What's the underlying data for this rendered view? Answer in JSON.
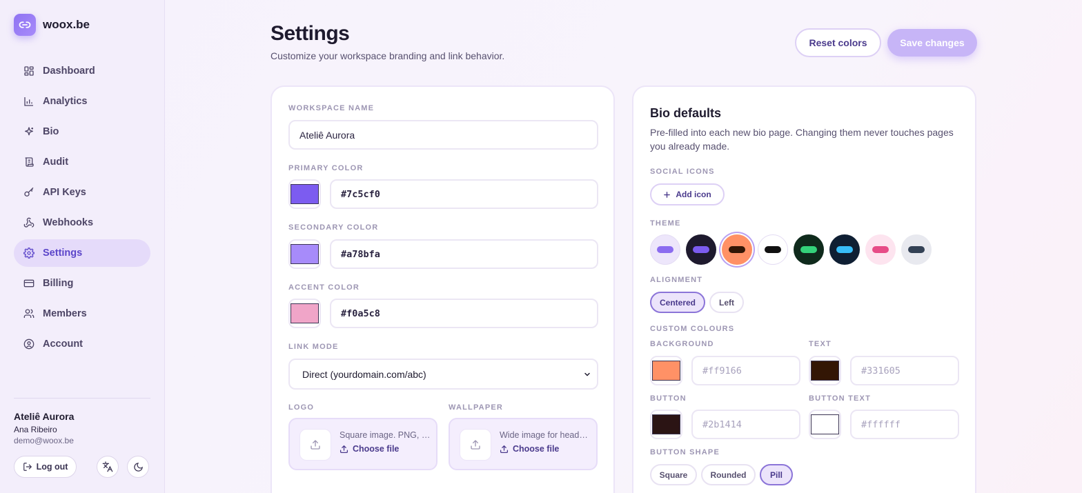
{
  "brand": {
    "name": "woox.be"
  },
  "nav": [
    {
      "label": "Dashboard",
      "icon": "dashboard-icon"
    },
    {
      "label": "Analytics",
      "icon": "analytics-icon"
    },
    {
      "label": "Bio",
      "icon": "sparkle-icon"
    },
    {
      "label": "Audit",
      "icon": "scroll-icon"
    },
    {
      "label": "API Keys",
      "icon": "key-icon"
    },
    {
      "label": "Webhooks",
      "icon": "webhook-icon"
    },
    {
      "label": "Settings",
      "icon": "gear-icon",
      "active": true
    },
    {
      "label": "Billing",
      "icon": "credit-card-icon"
    },
    {
      "label": "Members",
      "icon": "users-icon"
    },
    {
      "label": "Account",
      "icon": "user-circle-icon"
    }
  ],
  "user": {
    "workspace": "Ateliê Aurora",
    "name": "Ana Ribeiro",
    "email": "demo@woox.be",
    "logout_label": "Log out"
  },
  "header": {
    "title": "Settings",
    "subtitle": "Customize your workspace branding and link behavior.",
    "reset_label": "Reset colors",
    "save_label": "Save changes"
  },
  "workspace": {
    "name_label": "WORKSPACE NAME",
    "name_value": "Ateliê Aurora",
    "primary_label": "PRIMARY COLOR",
    "primary_value": "#7c5cf0",
    "secondary_label": "SECONDARY COLOR",
    "secondary_value": "#a78bfa",
    "accent_label": "ACCENT COLOR",
    "accent_value": "#f0a5c8",
    "link_mode_label": "LINK MODE",
    "link_mode_value": "Direct (yourdomain.com/abc)",
    "logo_label": "LOGO",
    "logo_hint": "Square image. PNG, JPG or SVG.",
    "wallpaper_label": "WALLPAPER",
    "wallpaper_hint": "Wide image for header background.",
    "choose_file_label": "Choose file"
  },
  "bio": {
    "title": "Bio defaults",
    "description": "Pre-filled into each new bio page. Changing them never touches pages you already made.",
    "social_label": "SOCIAL ICONS",
    "add_icon_label": "Add icon",
    "theme_label": "THEME",
    "themes": [
      {
        "bg": "#ede6fb",
        "pill": "#8b6cf0"
      },
      {
        "bg": "#1e1a2e",
        "pill": "#7c5cf0"
      },
      {
        "bg": "#ff9166",
        "pill": "#331605",
        "selected": true
      },
      {
        "bg": "#ffffff",
        "pill": "#111111"
      },
      {
        "bg": "#0f2a1c",
        "pill": "#34d27a"
      },
      {
        "bg": "#0f1f33",
        "pill": "#38bdf8"
      },
      {
        "bg": "#fde4ef",
        "pill": "#e74c87"
      },
      {
        "bg": "#e8e9ef",
        "pill": "#334155"
      }
    ],
    "alignment_label": "ALIGNMENT",
    "alignment_options": [
      "Centered",
      "Left"
    ],
    "alignment_selected": "Centered",
    "custom_label": "CUSTOM COLOURS",
    "background_label": "BACKGROUND",
    "background_value": "#ff9166",
    "text_label": "TEXT",
    "text_value": "#331605",
    "button_label": "BUTTON",
    "button_value": "#2b1414",
    "button_text_label": "BUTTON TEXT",
    "button_text_value": "#ffffff",
    "shape_label": "BUTTON SHAPE",
    "shape_options": [
      "Square",
      "Rounded",
      "Pill"
    ],
    "shape_selected": "Pill"
  }
}
